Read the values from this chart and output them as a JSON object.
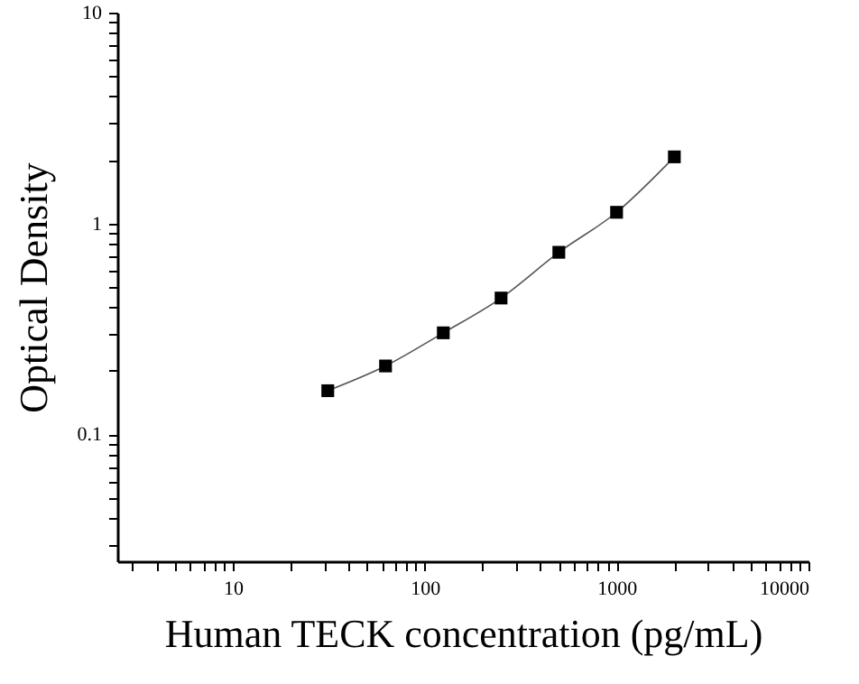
{
  "chart_data": {
    "type": "line",
    "xlabel": "Human TECK concentration (pg/mL)",
    "ylabel": "Optical Density",
    "log": "xy",
    "xlim": [
      2.5,
      10000
    ],
    "ylim": [
      0.025,
      10
    ],
    "xticks": [
      {
        "value": 3,
        "label": null
      },
      {
        "value": 4,
        "label": null
      },
      {
        "value": 5,
        "label": null
      },
      {
        "value": 6,
        "label": null
      },
      {
        "value": 7,
        "label": null
      },
      {
        "value": 8,
        "label": null
      },
      {
        "value": 9,
        "label": null
      },
      10,
      {
        "value": 20,
        "label": null
      },
      {
        "value": 30,
        "label": null
      },
      {
        "value": 40,
        "label": null
      },
      {
        "value": 50,
        "label": null
      },
      {
        "value": 60,
        "label": null
      },
      {
        "value": 70,
        "label": null
      },
      {
        "value": 80,
        "label": null
      },
      {
        "value": 90,
        "label": null
      },
      100,
      {
        "value": 200,
        "label": null
      },
      {
        "value": 300,
        "label": null
      },
      {
        "value": 400,
        "label": null
      },
      {
        "value": 500,
        "label": null
      },
      {
        "value": 600,
        "label": null
      },
      {
        "value": 700,
        "label": null
      },
      {
        "value": 800,
        "label": null
      },
      {
        "value": 900,
        "label": null
      },
      1000,
      {
        "value": 2000,
        "label": null
      },
      {
        "value": 3000,
        "label": null
      },
      {
        "value": 4000,
        "label": null
      },
      {
        "value": 5000,
        "label": null
      },
      {
        "value": 6000,
        "label": null
      },
      {
        "value": 7000,
        "label": null
      },
      {
        "value": 8000,
        "label": null
      },
      {
        "value": 9000,
        "label": null
      },
      10000
    ],
    "yticks": [
      {
        "value": 0.03,
        "label": null
      },
      {
        "value": 0.04,
        "label": null
      },
      {
        "value": 0.05,
        "label": null
      },
      {
        "value": 0.06,
        "label": null
      },
      {
        "value": 0.07,
        "label": null
      },
      {
        "value": 0.08,
        "label": null
      },
      {
        "value": 0.09,
        "label": null
      },
      0.1,
      {
        "value": 0.2,
        "label": null
      },
      {
        "value": 0.3,
        "label": null
      },
      {
        "value": 0.4,
        "label": null
      },
      {
        "value": 0.5,
        "label": null
      },
      {
        "value": 0.6,
        "label": null
      },
      {
        "value": 0.7,
        "label": null
      },
      {
        "value": 0.8,
        "label": null
      },
      {
        "value": 0.9,
        "label": null
      },
      1,
      {
        "value": 2,
        "label": null
      },
      {
        "value": 3,
        "label": null
      },
      {
        "value": 4,
        "label": null
      },
      {
        "value": 5,
        "label": null
      },
      {
        "value": 6,
        "label": null
      },
      {
        "value": 7,
        "label": null
      },
      {
        "value": 8,
        "label": null
      },
      {
        "value": 9,
        "label": null
      },
      10
    ],
    "marker": "square",
    "line_style": "solid",
    "x": [
      31.25,
      62.5,
      125,
      250,
      500,
      1000,
      2000
    ],
    "series": [
      {
        "color": "#000000",
        "values": [
          0.161,
          0.211,
          0.303,
          0.443,
          0.73,
          1.13,
          2.07
        ]
      }
    ]
  }
}
